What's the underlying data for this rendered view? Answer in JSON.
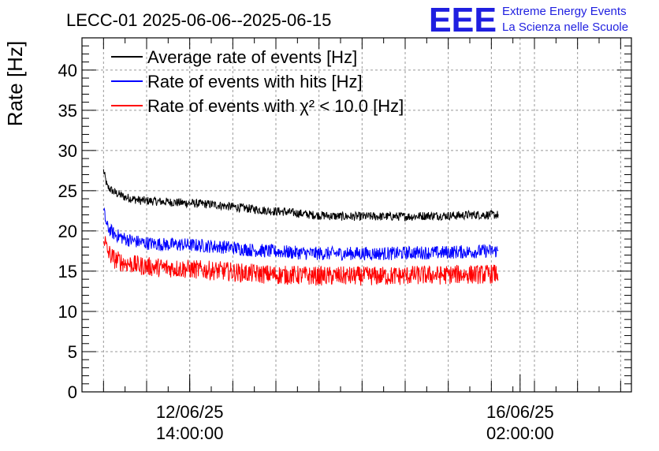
{
  "header": {
    "title": "LECC-01 2025-06-06--2025-06-15",
    "logo_text": "EEE",
    "logo_line1": "Extreme Energy Events",
    "logo_line2": "La Scienza nelle Scuole"
  },
  "colors": {
    "average": "#000000",
    "hits": "#0000ff",
    "chi2": "#ff0000",
    "logo": "#1f1fe0",
    "grid": "#999999"
  },
  "chart_data": {
    "type": "line",
    "title": "LECC-01 2025-06-06--2025-06-15",
    "ylabel": "Rate [Hz]",
    "xlabel": "",
    "ylim": [
      0,
      44
    ],
    "yticks": [
      "0",
      "5",
      "10",
      "15",
      "20",
      "25",
      "30",
      "35",
      "40"
    ],
    "xlim_hours": [
      -30,
      123
    ],
    "x_major_ticks": [
      {
        "hour": 0,
        "label_date": "12/06/25",
        "label_time": "14:00:00"
      },
      {
        "hour": 92,
        "label_date": "16/06/25",
        "label_time": "02:00:00"
      }
    ],
    "grid": true,
    "legend_position": "top-left",
    "series": [
      {
        "name": "Average rate of events [Hz]",
        "color_key": "average",
        "points": [
          [
            -24.0,
            27.5
          ],
          [
            -23.0,
            25.5
          ],
          [
            -21.0,
            24.8
          ],
          [
            -18.0,
            24.2
          ],
          [
            -14.0,
            23.8
          ],
          [
            -10.0,
            23.7
          ],
          [
            -6.0,
            23.6
          ],
          [
            -2.0,
            23.5
          ],
          [
            2.0,
            23.4
          ],
          [
            6.0,
            23.3
          ],
          [
            10.0,
            23.1
          ],
          [
            14.0,
            22.9
          ],
          [
            18.0,
            22.7
          ],
          [
            22.0,
            22.5
          ],
          [
            26.0,
            22.4
          ],
          [
            30.0,
            22.2
          ],
          [
            34.0,
            22.0
          ],
          [
            38.0,
            21.9
          ],
          [
            42.0,
            21.8
          ],
          [
            46.0,
            21.8
          ],
          [
            50.0,
            21.8
          ],
          [
            54.0,
            21.8
          ],
          [
            58.0,
            21.8
          ],
          [
            62.0,
            21.8
          ],
          [
            66.0,
            21.9
          ],
          [
            70.0,
            21.9
          ],
          [
            74.0,
            21.9
          ],
          [
            78.0,
            22.0
          ],
          [
            82.0,
            22.0
          ],
          [
            86.0,
            22.0
          ]
        ]
      },
      {
        "name": "Rate of events with hits [Hz]",
        "color_key": "hits",
        "points": [
          [
            -24.0,
            22.5
          ],
          [
            -23.0,
            20.5
          ],
          [
            -21.0,
            19.6
          ],
          [
            -18.0,
            19.0
          ],
          [
            -14.0,
            18.6
          ],
          [
            -10.0,
            18.4
          ],
          [
            -6.0,
            18.3
          ],
          [
            -2.0,
            18.3
          ],
          [
            2.0,
            18.2
          ],
          [
            6.0,
            18.1
          ],
          [
            10.0,
            18.0
          ],
          [
            14.0,
            17.8
          ],
          [
            18.0,
            17.6
          ],
          [
            22.0,
            17.5
          ],
          [
            26.0,
            17.4
          ],
          [
            30.0,
            17.3
          ],
          [
            34.0,
            17.2
          ],
          [
            38.0,
            17.2
          ],
          [
            42.0,
            17.2
          ],
          [
            46.0,
            17.2
          ],
          [
            50.0,
            17.2
          ],
          [
            54.0,
            17.2
          ],
          [
            58.0,
            17.2
          ],
          [
            62.0,
            17.3
          ],
          [
            66.0,
            17.3
          ],
          [
            70.0,
            17.3
          ],
          [
            74.0,
            17.4
          ],
          [
            78.0,
            17.4
          ],
          [
            82.0,
            17.5
          ],
          [
            86.0,
            17.5
          ]
        ]
      },
      {
        "name": "Rate of events with χ² < 10.0 [Hz]",
        "color_key": "chi2",
        "points": [
          [
            -24.0,
            19.5
          ],
          [
            -23.0,
            17.5
          ],
          [
            -21.0,
            16.5
          ],
          [
            -18.0,
            16.0
          ],
          [
            -14.0,
            15.7
          ],
          [
            -10.0,
            15.5
          ],
          [
            -6.0,
            15.4
          ],
          [
            -2.0,
            15.3
          ],
          [
            2.0,
            15.2
          ],
          [
            6.0,
            15.1
          ],
          [
            10.0,
            15.0
          ],
          [
            14.0,
            14.8
          ],
          [
            18.0,
            14.7
          ],
          [
            22.0,
            14.6
          ],
          [
            26.0,
            14.5
          ],
          [
            30.0,
            14.5
          ],
          [
            34.0,
            14.4
          ],
          [
            38.0,
            14.4
          ],
          [
            42.0,
            14.4
          ],
          [
            46.0,
            14.4
          ],
          [
            50.0,
            14.4
          ],
          [
            54.0,
            14.4
          ],
          [
            58.0,
            14.4
          ],
          [
            62.0,
            14.5
          ],
          [
            66.0,
            14.5
          ],
          [
            70.0,
            14.5
          ],
          [
            74.0,
            14.6
          ],
          [
            78.0,
            14.6
          ],
          [
            82.0,
            14.6
          ],
          [
            86.0,
            14.7
          ]
        ]
      }
    ]
  }
}
